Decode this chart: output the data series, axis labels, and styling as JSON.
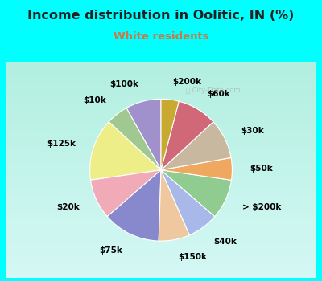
{
  "title": "Income distribution in Oolitic, IN (%)",
  "subtitle": "White residents",
  "bg_color": "#00FFFF",
  "chart_bg_top": "#e8f8f0",
  "chart_bg_bottom": "#d0f0e0",
  "title_color": "#222222",
  "subtitle_color": "#cc7744",
  "labels": [
    "$100k",
    "$10k",
    "$125k",
    "$20k",
    "$75k",
    "$150k",
    "$40k",
    "> $200k",
    "$50k",
    "$30k",
    "$60k",
    "$200k"
  ],
  "values": [
    8,
    5,
    14,
    9,
    13,
    7,
    7,
    9,
    5,
    9,
    9,
    4
  ],
  "colors": [
    "#a090cc",
    "#a0c890",
    "#eeee88",
    "#f0aab8",
    "#8888cc",
    "#f0c8a0",
    "#a8b8e8",
    "#90cc90",
    "#f0a860",
    "#c8b8a0",
    "#d06878",
    "#c8aa30"
  ],
  "startangle": 90,
  "title_fontsize": 11.5,
  "subtitle_fontsize": 9.5,
  "label_fontsize": 7.5
}
